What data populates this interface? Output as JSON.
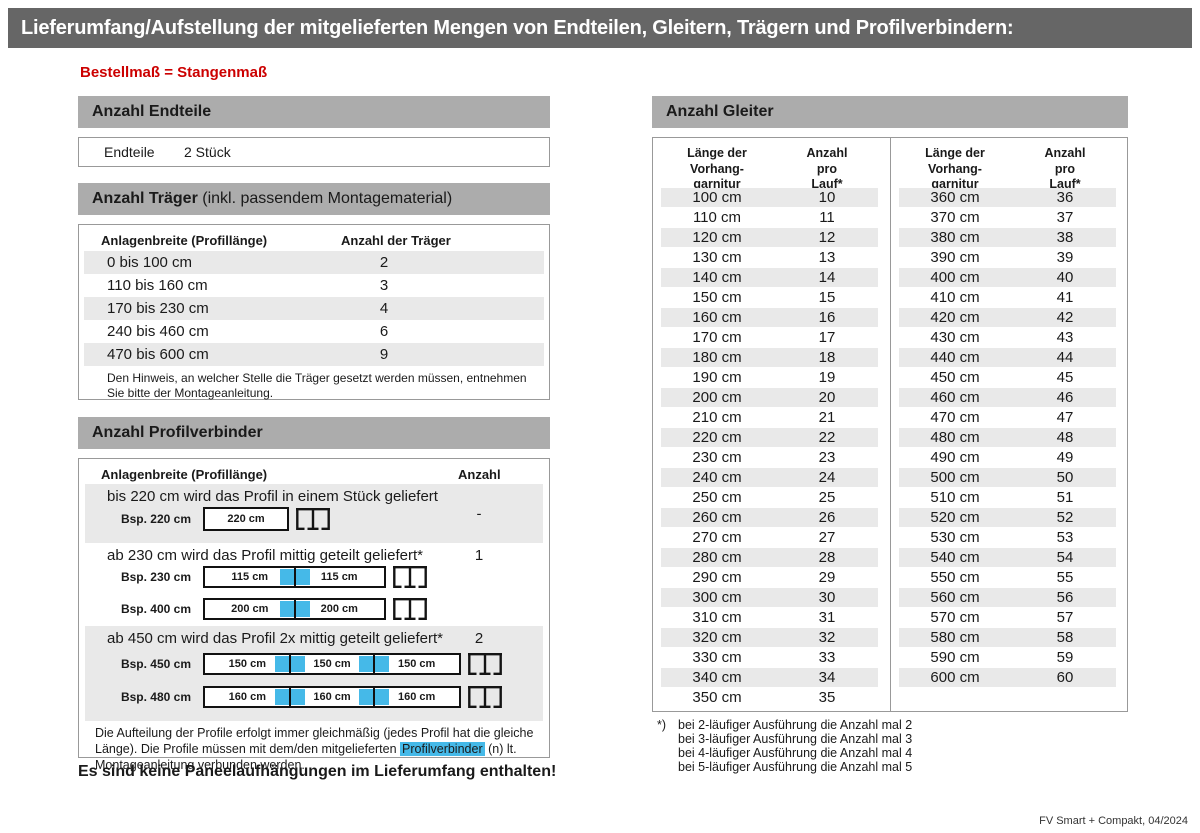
{
  "page": {
    "title": "Lieferumfang/Aufstellung der mitgelieferten Mengen von Endteilen, Gleitern, Trägern und Profilverbindern:",
    "subtitle": "Bestellmaß = Stangenmaß",
    "footer": "FV Smart + Compakt, 04/2024"
  },
  "colors": {
    "banner_bg": "#666666",
    "section_bar_bg": "#ACACAC",
    "stripe_bg": "#E9E9E9",
    "accent_red": "#CC0000",
    "accent_blue": "#45B9E8",
    "box_border": "#999999"
  },
  "icons": {
    "profile_end": "track-profile-end-icon"
  },
  "endteile": {
    "header": "Anzahl Endteile",
    "label": "Endteile",
    "value": "2 Stück"
  },
  "traeger": {
    "header_bold": "Anzahl Träger",
    "header_rest": " (inkl. passendem Montagematerial)",
    "col1": "Anlagenbreite (Profillänge)",
    "col2": "Anzahl der Träger",
    "rows": [
      {
        "range": "0 bis 100 cm",
        "count": "2"
      },
      {
        "range": "110 bis 160 cm",
        "count": "3"
      },
      {
        "range": "170 bis 230 cm",
        "count": "4"
      },
      {
        "range": "240 bis 460 cm",
        "count": "6"
      },
      {
        "range": "470 bis 600 cm",
        "count": "9"
      }
    ],
    "note": "Den Hinweis, an welcher Stelle die Träger gesetzt werden müssen, entnehmen Sie bitte der Montageanleitung."
  },
  "profilverbinder": {
    "header": "Anzahl Profilverbinder",
    "col1": "Anlagenbreite (Profillänge)",
    "col2": "Anzahl",
    "sections": [
      {
        "text": "bis 220 cm wird das Profil in einem Stück geliefert",
        "anzahl": "-",
        "examples": [
          {
            "label": "Bsp. 220 cm",
            "segments": [
              "220 cm"
            ]
          }
        ]
      },
      {
        "text": "ab 230 cm wird das Profil mittig geteilt geliefert*",
        "anzahl": "1",
        "examples": [
          {
            "label": "Bsp. 230 cm",
            "segments": [
              "115 cm",
              "115 cm"
            ]
          },
          {
            "label": "Bsp. 400 cm",
            "segments": [
              "200 cm",
              "200 cm"
            ]
          }
        ]
      },
      {
        "text": "ab 450 cm wird das Profil 2x mittig geteilt geliefert*",
        "anzahl": "2",
        "examples": [
          {
            "label": "Bsp. 450 cm",
            "segments": [
              "150 cm",
              "150 cm",
              "150 cm"
            ]
          },
          {
            "label": "Bsp. 480 cm",
            "segments": [
              "160 cm",
              "160 cm",
              "160 cm"
            ]
          }
        ]
      }
    ],
    "note_part1": "Die Aufteilung der Profile erfolgt immer gleichmäßig (jedes Profil hat die gleiche Länge). Die Profile müssen mit dem/den mitgelieferten ",
    "note_highlight": "Profilverbinder",
    "note_part2": " (n) lt. Montageanleitung verbunden werden."
  },
  "paneel_note": "Es sind keine Paneelaufhängungen im Lieferumfang enthalten!",
  "gleiter": {
    "header": "Anzahl Gleiter",
    "col1_lines": [
      "Länge der",
      "Vorhang-",
      "garnitur"
    ],
    "col2_lines": [
      "Anzahl",
      "pro",
      "Lauf*"
    ],
    "table1": [
      {
        "length": "100 cm",
        "count": "10"
      },
      {
        "length": "110 cm",
        "count": "11"
      },
      {
        "length": "120 cm",
        "count": "12"
      },
      {
        "length": "130 cm",
        "count": "13"
      },
      {
        "length": "140 cm",
        "count": "14"
      },
      {
        "length": "150 cm",
        "count": "15"
      },
      {
        "length": "160 cm",
        "count": "16"
      },
      {
        "length": "170 cm",
        "count": "17"
      },
      {
        "length": "180 cm",
        "count": "18"
      },
      {
        "length": "190 cm",
        "count": "19"
      },
      {
        "length": "200 cm",
        "count": "20"
      },
      {
        "length": "210 cm",
        "count": "21"
      },
      {
        "length": "220 cm",
        "count": "22"
      },
      {
        "length": "230 cm",
        "count": "23"
      },
      {
        "length": "240 cm",
        "count": "24"
      },
      {
        "length": "250 cm",
        "count": "25"
      },
      {
        "length": "260 cm",
        "count": "26"
      },
      {
        "length": "270 cm",
        "count": "27"
      },
      {
        "length": "280 cm",
        "count": "28"
      },
      {
        "length": "290 cm",
        "count": "29"
      },
      {
        "length": "300 cm",
        "count": "30"
      },
      {
        "length": "310 cm",
        "count": "31"
      },
      {
        "length": "320 cm",
        "count": "32"
      },
      {
        "length": "330 cm",
        "count": "33"
      },
      {
        "length": "340 cm",
        "count": "34"
      },
      {
        "length": "350 cm",
        "count": "35"
      }
    ],
    "table2": [
      {
        "length": "360 cm",
        "count": "36"
      },
      {
        "length": "370 cm",
        "count": "37"
      },
      {
        "length": "380 cm",
        "count": "38"
      },
      {
        "length": "390 cm",
        "count": "39"
      },
      {
        "length": "400 cm",
        "count": "40"
      },
      {
        "length": "410 cm",
        "count": "41"
      },
      {
        "length": "420 cm",
        "count": "42"
      },
      {
        "length": "430 cm",
        "count": "43"
      },
      {
        "length": "440 cm",
        "count": "44"
      },
      {
        "length": "450 cm",
        "count": "45"
      },
      {
        "length": "460 cm",
        "count": "46"
      },
      {
        "length": "470 cm",
        "count": "47"
      },
      {
        "length": "480 cm",
        "count": "48"
      },
      {
        "length": "490 cm",
        "count": "49"
      },
      {
        "length": "500 cm",
        "count": "50"
      },
      {
        "length": "510 cm",
        "count": "51"
      },
      {
        "length": "520 cm",
        "count": "52"
      },
      {
        "length": "530 cm",
        "count": "53"
      },
      {
        "length": "540 cm",
        "count": "54"
      },
      {
        "length": "550 cm",
        "count": "55"
      },
      {
        "length": "560 cm",
        "count": "56"
      },
      {
        "length": "570 cm",
        "count": "57"
      },
      {
        "length": "580 cm",
        "count": "58"
      },
      {
        "length": "590 cm",
        "count": "59"
      },
      {
        "length": "600 cm",
        "count": "60"
      }
    ],
    "footnote_marker": "*)",
    "footnotes": [
      "bei 2-läufiger Ausführung die Anzahl mal 2",
      "bei 3-läufiger Ausführung die Anzahl mal 3",
      "bei 4-läufiger Ausführung die Anzahl mal 4",
      "bei 5-läufiger Ausführung die Anzahl mal 5"
    ]
  }
}
